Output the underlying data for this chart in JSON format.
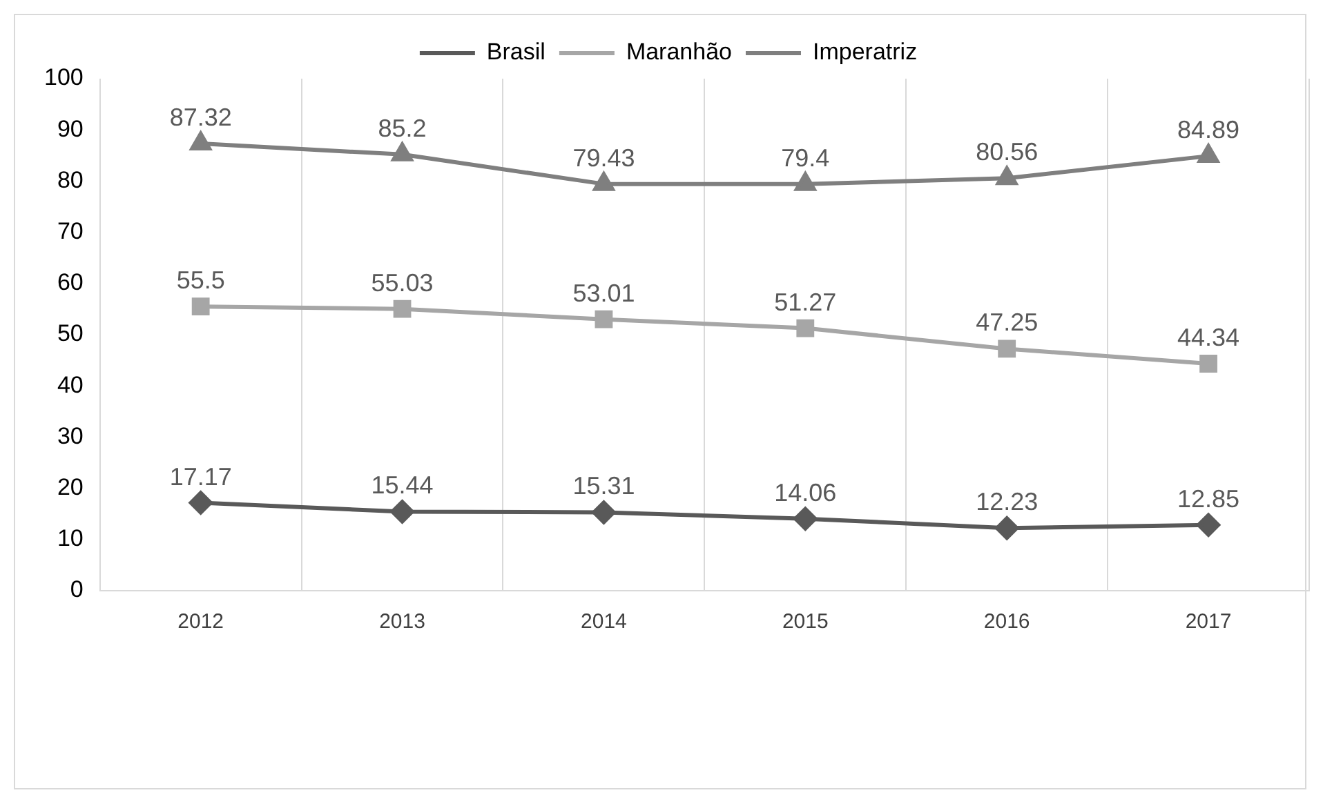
{
  "chart_data": {
    "type": "line",
    "categories": [
      "2012",
      "2013",
      "2014",
      "2015",
      "2016",
      "2017"
    ],
    "series": [
      {
        "name": "Brasil",
        "color": "#595959",
        "marker": "diamond",
        "values": [
          17.17,
          15.44,
          15.31,
          14.06,
          12.23,
          12.85
        ]
      },
      {
        "name": "Maranhão",
        "color": "#a6a6a6",
        "marker": "square",
        "values": [
          55.5,
          55.03,
          53.01,
          51.27,
          47.25,
          44.34
        ]
      },
      {
        "name": "Imperatriz",
        "color": "#7f7f7f",
        "marker": "triangle",
        "values": [
          87.32,
          85.2,
          79.43,
          79.4,
          80.56,
          84.89
        ]
      }
    ],
    "ylim": [
      0,
      100
    ],
    "yticks": [
      0,
      10,
      20,
      30,
      40,
      50,
      60,
      70,
      80,
      90,
      100
    ],
    "grid": "x",
    "legend": "top",
    "data_labels": true
  }
}
